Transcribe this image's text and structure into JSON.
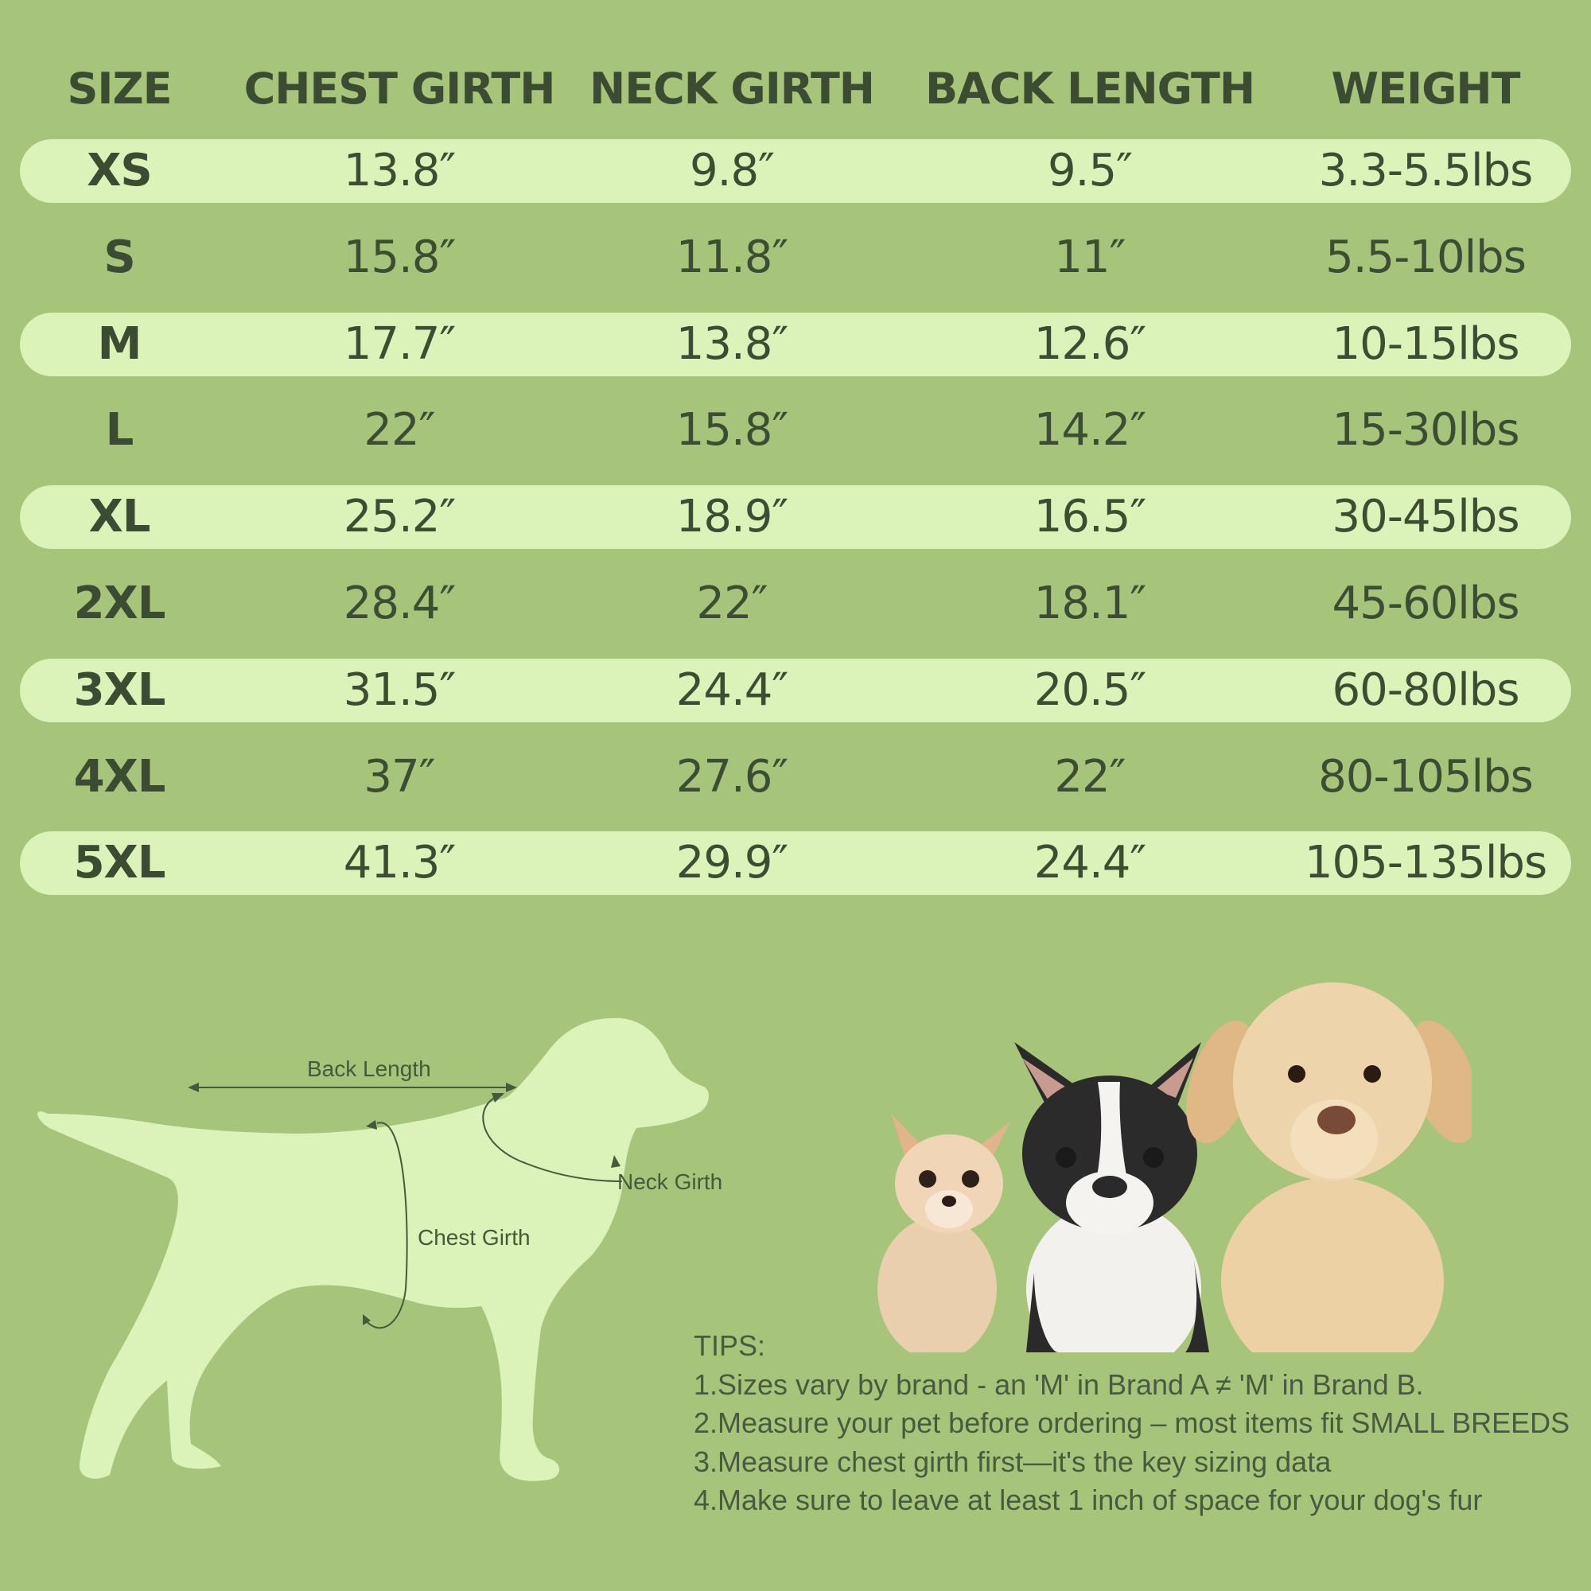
{
  "table": {
    "headers": [
      "SIZE",
      "CHEST GIRTH",
      "NECK GIRTH",
      "BACK LENGTH",
      "WEIGHT"
    ],
    "rows": [
      [
        "XS",
        "13.8″",
        "9.8″",
        "9.5″",
        "3.3-5.5lbs"
      ],
      [
        "S",
        "15.8″",
        "11.8″",
        "11″",
        "5.5-10lbs"
      ],
      [
        "M",
        "17.7″",
        "13.8″",
        "12.6″",
        "10-15lbs"
      ],
      [
        "L",
        "22″",
        "15.8″",
        "14.2″",
        "15-30lbs"
      ],
      [
        "XL",
        "25.2″",
        "18.9″",
        "16.5″",
        "30-45lbs"
      ],
      [
        "2XL",
        "28.4″",
        "22″",
        "18.1″",
        "45-60lbs"
      ],
      [
        "3XL",
        "31.5″",
        "24.4″",
        "20.5″",
        "60-80lbs"
      ],
      [
        "4XL",
        "37″",
        "27.6″",
        "22″",
        "80-105lbs"
      ],
      [
        "5XL",
        "41.3″",
        "29.9″",
        "24.4″",
        "105-135lbs"
      ]
    ]
  },
  "diagram": {
    "back_length_label": "Back Length",
    "neck_girth_label": "Neck Girth",
    "chest_girth_label": "Chest Girth"
  },
  "tips": {
    "title": "TIPS:",
    "items": [
      "1.Sizes vary by brand - an 'M' in Brand A ≠ 'M' in Brand B.",
      "2.Measure your pet before ordering – most items fit SMALL BREEDS",
      "3.Measure chest girth first—it's the key sizing data",
      "4.Make sure to leave at least 1 inch of space for your dog's fur"
    ]
  },
  "colors": {
    "background": "#a6c57b",
    "band": "#dbf2b8",
    "text": "#3d4d33",
    "silhouette": "#dbf2b8"
  }
}
